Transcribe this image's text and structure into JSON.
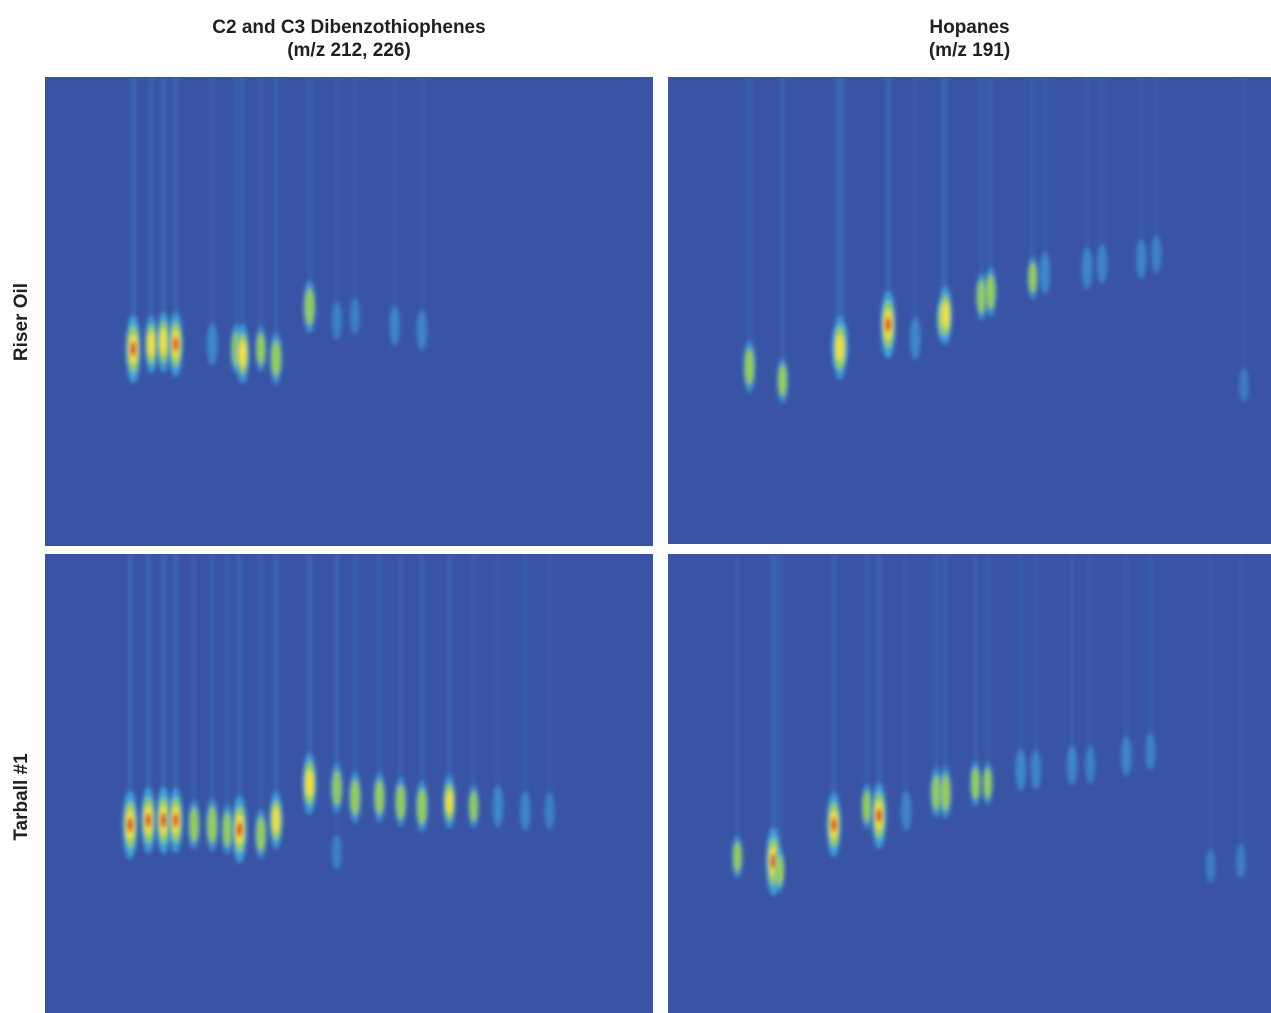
{
  "columns": [
    {
      "title": "C2 and C3 Dibenzothiophenes",
      "subtitle": "(m/z 212, 226)"
    },
    {
      "title": "Hopanes",
      "subtitle": "(m/z 191)"
    }
  ],
  "rows": [
    {
      "label": "Riser Oil"
    },
    {
      "label": "Tarball #1"
    }
  ],
  "colors": {
    "background": "#3954a4",
    "low": "#3fa6dc",
    "mid": "#9cd24c",
    "high": "#f4e23a",
    "peak": "#e4281e"
  },
  "chart_data": [
    {
      "type": "heatmap",
      "row": "Riser Oil",
      "column": "C2 and C3 Dibenzothiophenes",
      "title": "",
      "xlabel": "",
      "ylabel": "",
      "x_range": [
        0,
        100
      ],
      "y_range": [
        0,
        100
      ],
      "peaks": [
        {
          "x": 14.5,
          "y": 58,
          "i": 1.0
        },
        {
          "x": 17.5,
          "y": 57,
          "i": 0.75
        },
        {
          "x": 19.5,
          "y": 56.5,
          "i": 0.82
        },
        {
          "x": 21.5,
          "y": 57,
          "i": 0.92
        },
        {
          "x": 27.5,
          "y": 57,
          "i": 0.35
        },
        {
          "x": 31.5,
          "y": 58,
          "i": 0.55
        },
        {
          "x": 32.5,
          "y": 59,
          "i": 0.78
        },
        {
          "x": 35.5,
          "y": 58,
          "i": 0.45
        },
        {
          "x": 38,
          "y": 60,
          "i": 0.6
        },
        {
          "x": 43.5,
          "y": 49,
          "i": 0.62
        },
        {
          "x": 48,
          "y": 52,
          "i": 0.25
        },
        {
          "x": 51,
          "y": 51,
          "i": 0.22
        },
        {
          "x": 57.5,
          "y": 53,
          "i": 0.3
        },
        {
          "x": 62,
          "y": 54,
          "i": 0.3
        }
      ]
    },
    {
      "type": "heatmap",
      "row": "Riser Oil",
      "column": "Hopanes",
      "title": "",
      "xlabel": "",
      "ylabel": "",
      "x_range": [
        0,
        100
      ],
      "y_range": [
        0,
        100
      ],
      "peaks": [
        {
          "x": 13.5,
          "y": 62,
          "i": 0.6
        },
        {
          "x": 19,
          "y": 65,
          "i": 0.45
        },
        {
          "x": 28,
          "y": 58,
          "i": 0.3
        },
        {
          "x": 29,
          "y": 57,
          "i": 0.35
        },
        {
          "x": 28.5,
          "y": 58,
          "i": 0.88
        },
        {
          "x": 36.5,
          "y": 53,
          "i": 1.0
        },
        {
          "x": 41,
          "y": 56,
          "i": 0.35
        },
        {
          "x": 45.5,
          "y": 52,
          "i": 0.4
        },
        {
          "x": 46,
          "y": 51,
          "i": 0.78
        },
        {
          "x": 52,
          "y": 47,
          "i": 0.5
        },
        {
          "x": 53.5,
          "y": 46,
          "i": 0.55
        },
        {
          "x": 60.5,
          "y": 43,
          "i": 0.4
        },
        {
          "x": 62.5,
          "y": 42,
          "i": 0.35
        },
        {
          "x": 69.5,
          "y": 41,
          "i": 0.35
        },
        {
          "x": 72,
          "y": 40,
          "i": 0.3
        },
        {
          "x": 78.5,
          "y": 39,
          "i": 0.3
        },
        {
          "x": 81,
          "y": 38,
          "i": 0.25
        },
        {
          "x": 95.5,
          "y": 66,
          "i": 0.15
        }
      ]
    },
    {
      "type": "heatmap",
      "row": "Tarball #1",
      "column": "C2 and C3 Dibenzothiophenes",
      "title": "",
      "xlabel": "",
      "ylabel": "",
      "x_range": [
        0,
        100
      ],
      "y_range": [
        0,
        100
      ],
      "peaks": [
        {
          "x": 14,
          "y": 59,
          "i": 1.0
        },
        {
          "x": 17,
          "y": 58,
          "i": 0.95
        },
        {
          "x": 19.5,
          "y": 58,
          "i": 0.98
        },
        {
          "x": 21.5,
          "y": 58,
          "i": 0.92
        },
        {
          "x": 24.5,
          "y": 59,
          "i": 0.55
        },
        {
          "x": 27.5,
          "y": 59,
          "i": 0.62
        },
        {
          "x": 30,
          "y": 60,
          "i": 0.55
        },
        {
          "x": 32,
          "y": 60,
          "i": 0.98
        },
        {
          "x": 35.5,
          "y": 61,
          "i": 0.55
        },
        {
          "x": 38,
          "y": 58,
          "i": 0.75
        },
        {
          "x": 43.5,
          "y": 50,
          "i": 0.85
        },
        {
          "x": 48,
          "y": 51,
          "i": 0.55
        },
        {
          "x": 51,
          "y": 53,
          "i": 0.6
        },
        {
          "x": 55,
          "y": 53,
          "i": 0.55
        },
        {
          "x": 58.5,
          "y": 54,
          "i": 0.55
        },
        {
          "x": 62,
          "y": 55,
          "i": 0.6
        },
        {
          "x": 66.5,
          "y": 54,
          "i": 0.65
        },
        {
          "x": 70.5,
          "y": 55,
          "i": 0.4
        },
        {
          "x": 74.5,
          "y": 55,
          "i": 0.35
        },
        {
          "x": 79,
          "y": 56,
          "i": 0.3
        },
        {
          "x": 83,
          "y": 56,
          "i": 0.25
        },
        {
          "x": 48,
          "y": 65,
          "i": 0.2
        }
      ]
    },
    {
      "type": "heatmap",
      "row": "Tarball #1",
      "column": "Hopanes",
      "title": "",
      "xlabel": "",
      "ylabel": "",
      "x_range": [
        0,
        100
      ],
      "y_range": [
        0,
        100
      ],
      "peaks": [
        {
          "x": 11.5,
          "y": 66,
          "i": 0.4
        },
        {
          "x": 17.5,
          "y": 67,
          "i": 1.0
        },
        {
          "x": 18.5,
          "y": 69,
          "i": 0.4
        },
        {
          "x": 27.5,
          "y": 59,
          "i": 0.92
        },
        {
          "x": 33,
          "y": 55,
          "i": 0.45
        },
        {
          "x": 35,
          "y": 57,
          "i": 0.95
        },
        {
          "x": 39.5,
          "y": 56,
          "i": 0.3
        },
        {
          "x": 44.5,
          "y": 52,
          "i": 0.55
        },
        {
          "x": 46,
          "y": 52,
          "i": 0.6
        },
        {
          "x": 51,
          "y": 50,
          "i": 0.45
        },
        {
          "x": 53,
          "y": 50,
          "i": 0.4
        },
        {
          "x": 58.5,
          "y": 47,
          "i": 0.35
        },
        {
          "x": 61,
          "y": 47,
          "i": 0.3
        },
        {
          "x": 67,
          "y": 46,
          "i": 0.3
        },
        {
          "x": 70,
          "y": 46,
          "i": 0.25
        },
        {
          "x": 76,
          "y": 44,
          "i": 0.3
        },
        {
          "x": 80,
          "y": 43,
          "i": 0.25
        },
        {
          "x": 90,
          "y": 68,
          "i": 0.15
        },
        {
          "x": 95,
          "y": 67,
          "i": 0.18
        }
      ]
    }
  ]
}
